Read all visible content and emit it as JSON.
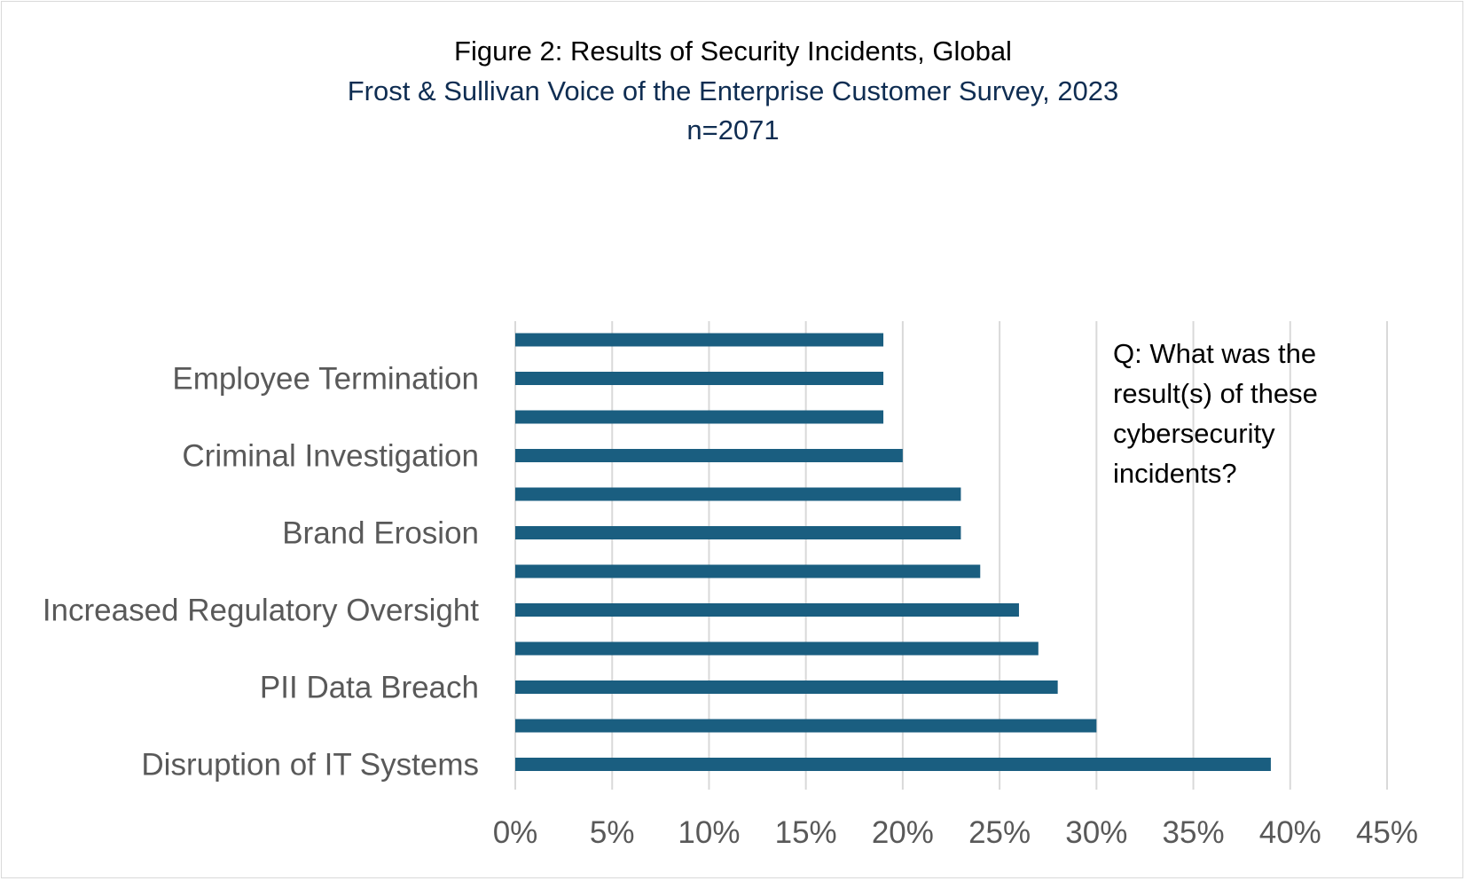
{
  "chart_data": {
    "type": "bar",
    "orientation": "horizontal",
    "title": "Figure 2: Results of Security Incidents, Global",
    "subtitle": "Frost & Sullivan Voice of the Enterprise Customer Survey, 2023",
    "sample_size": "n=2071",
    "annotation": "Q: What was the result(s) of these cybersecurity incidents?",
    "categories": [
      "",
      "Employee Termination",
      "",
      "Criminal Investigation",
      "",
      "Brand Erosion",
      "",
      "Increased Regulatory Oversight",
      "",
      "PII Data Breach",
      "",
      "Disruption of IT Systems"
    ],
    "values": [
      0.19,
      0.19,
      0.19,
      0.2,
      0.23,
      0.23,
      0.24,
      0.26,
      0.27,
      0.28,
      0.3,
      0.39
    ],
    "xlim": [
      0,
      0.45
    ],
    "xticks": [
      "0%",
      "5%",
      "10%",
      "15%",
      "20%",
      "25%",
      "30%",
      "35%",
      "40%",
      "45%"
    ],
    "grid": true,
    "legend": "none",
    "bar_color": "#1a5e80",
    "grid_color": "#d9d9d9"
  }
}
